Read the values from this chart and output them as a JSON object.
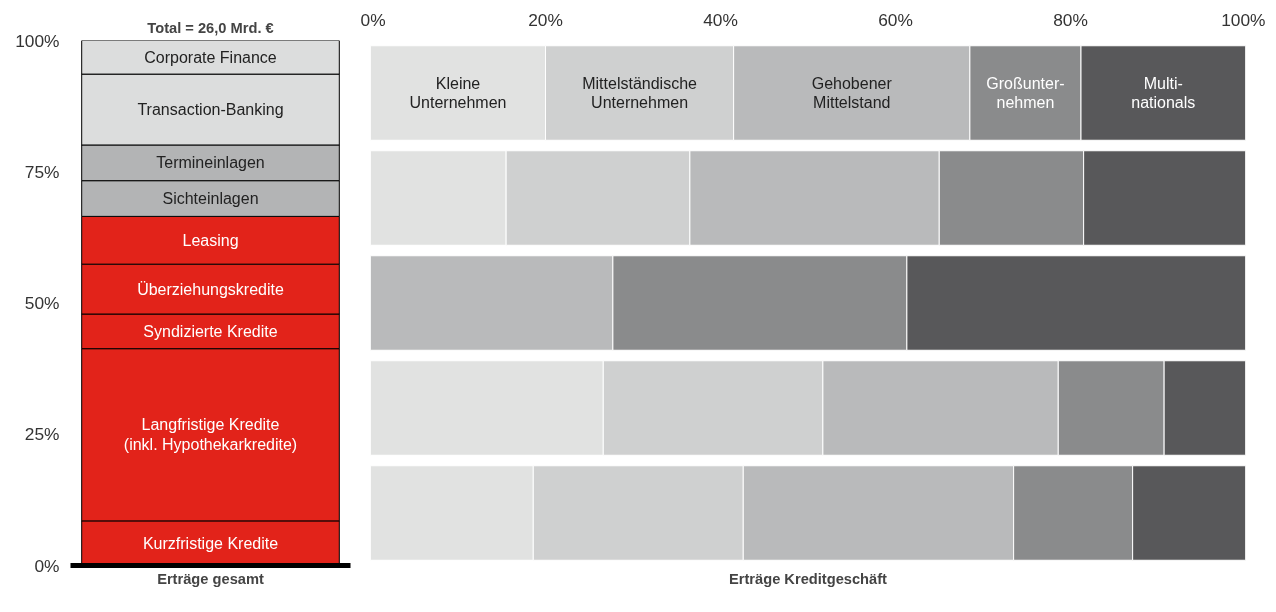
{
  "chart_data": [
    {
      "type": "bar",
      "title": "Total = 26,0 Mrd. €",
      "xlabel": "Erträge gesamt",
      "stacked": true,
      "legend": false,
      "grid": false,
      "categories": [
        null
      ],
      "ylim": [
        0,
        100
      ],
      "yticks": [
        {
          "value": 0,
          "label": "0%"
        },
        {
          "value": 25,
          "label": "25%"
        },
        {
          "value": 50,
          "label": "50%"
        },
        {
          "value": 75,
          "label": "75%"
        },
        {
          "value": 100,
          "label": "100%"
        }
      ],
      "series": [
        {
          "name": "Kurzfristige Kredite",
          "color": "#e2231a",
          "values": [
            8.5
          ]
        },
        {
          "name": "Langfristige Kredite\n(inkl. Hypothekarkredite)",
          "color": "#e2231a",
          "values": [
            32.8
          ]
        },
        {
          "name": "Syndizierte Kredite",
          "color": "#e2231a",
          "values": [
            6.6
          ]
        },
        {
          "name": "Überziehungskredite",
          "color": "#e2231a",
          "values": [
            9.5
          ]
        },
        {
          "name": "Leasing",
          "color": "#e2231a",
          "values": [
            9.1
          ]
        },
        {
          "name": "Sichteinlagen",
          "color": "#b3b4b5",
          "values": [
            6.8
          ]
        },
        {
          "name": "Termineinlagen",
          "color": "#b3b4b5",
          "values": [
            6.8
          ]
        },
        {
          "name": "Transaction-Banking",
          "color": "#dcdddd",
          "values": [
            13.5
          ]
        },
        {
          "name": "Corporate Finance",
          "color": "#dcdddd",
          "values": [
            6.4
          ]
        }
      ]
    },
    {
      "type": "bar",
      "orientation": "horizontal",
      "stacked": true,
      "xlabel": "Erträge Kreditgeschäft",
      "legend": false,
      "grid": false,
      "categories": [
        null,
        null,
        null,
        null,
        null
      ],
      "xlim": [
        0,
        100
      ],
      "xticks": [
        {
          "value": 0,
          "label": "0%"
        },
        {
          "value": 20,
          "label": "20%"
        },
        {
          "value": 40,
          "label": "40%"
        },
        {
          "value": 60,
          "label": "60%"
        },
        {
          "value": 80,
          "label": "80%"
        },
        {
          "value": 100,
          "label": "100%"
        }
      ],
      "series": [
        {
          "name": "Kleine\nUnternehmen",
          "color": "#e1e2e1",
          "values": [
            20.0,
            15.5,
            null,
            26.6,
            18.6
          ]
        },
        {
          "name": "Mittelständische\nUnternehmen",
          "color": "#cfd0d0",
          "values": [
            21.5,
            21.0,
            null,
            25.1,
            24.0
          ]
        },
        {
          "name": "Gehobener\nMittelstand",
          "color": "#b9babb",
          "values": [
            27.0,
            28.5,
            27.7,
            26.9,
            30.9
          ]
        },
        {
          "name": "Großunter-\nnehmen",
          "color": "#8a8b8c",
          "values": [
            12.7,
            16.5,
            33.6,
            12.1,
            13.6
          ]
        },
        {
          "name": "Multi-\nnationals",
          "color": "#58585a",
          "values": [
            18.8,
            18.5,
            38.7,
            9.3,
            12.9
          ]
        }
      ]
    }
  ]
}
